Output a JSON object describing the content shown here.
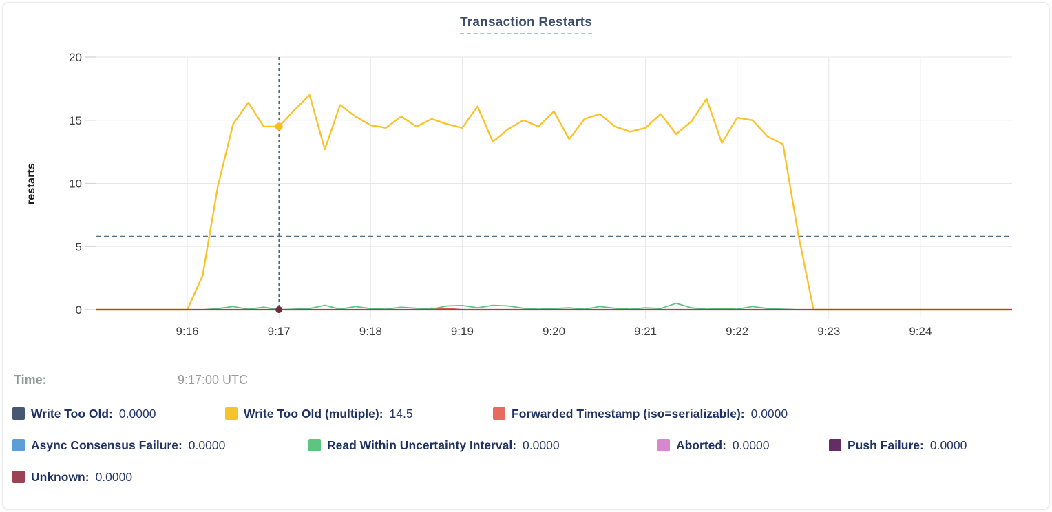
{
  "title": "Transaction Restarts",
  "tooltip": {
    "label": "Time:",
    "value": "9:17:00 UTC"
  },
  "legend": {
    "items": [
      {
        "label": "Write Too Old:",
        "value": "0.0000",
        "color": "#475872"
      },
      {
        "label": "Write Too Old (multiple):",
        "value": "14.5",
        "color": "#F6C32B"
      },
      {
        "label": "Forwarded Timestamp (iso=serializable):",
        "value": "0.0000",
        "color": "#E8695D"
      },
      {
        "label": "Async Consensus Failure:",
        "value": "0.0000",
        "color": "#5C9FD8"
      },
      {
        "label": "Read Within Uncertainty Interval:",
        "value": "0.0000",
        "color": "#5DC57F"
      },
      {
        "label": "Aborted:",
        "value": "0.0000",
        "color": "#D687CE"
      },
      {
        "label": "Push Failure:",
        "value": "0.0000",
        "color": "#642D64"
      },
      {
        "label": "Unknown:",
        "value": "0.0000",
        "color": "#9C4257"
      }
    ]
  },
  "chart_data": {
    "type": "line",
    "title": "Transaction Restarts",
    "xlabel": "",
    "ylabel": "restarts",
    "ylim": [
      0,
      20
    ],
    "yticks": [
      0,
      5,
      10,
      15,
      20
    ],
    "xticks": [
      "9:16",
      "9:17",
      "9:18",
      "9:19",
      "9:20",
      "9:21",
      "9:22",
      "9:23",
      "9:24"
    ],
    "x_domain": [
      "9:15:00",
      "9:25:00"
    ],
    "sample_interval_seconds": 10,
    "grid": true,
    "legend_position": "bottom",
    "guide_line": {
      "y": 5.8,
      "style": "dashed",
      "color": "#4F7089"
    },
    "crosshair": {
      "time": "9:17:00",
      "style": "dashed",
      "color": "#41607A",
      "hover_points": [
        {
          "series": "Write Too Old (multiple)",
          "value": 14.5,
          "color": "#F5BD1F",
          "r": 5.5
        },
        {
          "series": "Unknown",
          "value": 0,
          "color": "#6F2B40",
          "r": 5
        }
      ]
    },
    "series": [
      {
        "name": "Write Too Old",
        "color": "#475872",
        "flat_value": 0
      },
      {
        "name": "Write Too Old (multiple)",
        "color": "#FBC32A",
        "line_width": 2.4,
        "values": [
          0,
          0,
          0,
          0,
          0,
          0,
          0,
          2.7,
          9.8,
          14.7,
          16.4,
          14.5,
          14.5,
          15.8,
          17.0,
          12.7,
          16.2,
          15.3,
          14.6,
          14.4,
          15.3,
          14.5,
          15.1,
          14.7,
          14.4,
          16.1,
          13.3,
          14.3,
          15.0,
          14.5,
          15.7,
          13.5,
          15.1,
          15.5,
          14.5,
          14.1,
          14.4,
          15.5,
          13.9,
          14.9,
          16.7,
          13.2,
          15.2,
          15.0,
          13.7,
          13.1,
          6.0,
          0,
          0,
          0,
          0,
          0,
          0,
          0,
          0,
          0,
          0,
          0,
          0,
          0,
          0
        ]
      },
      {
        "name": "Forwarded Timestamp (iso=serializable)",
        "color": "#E05C52",
        "line_width": 2,
        "values": [
          0,
          0,
          0,
          0,
          0,
          0,
          0,
          0,
          0,
          0,
          0,
          0,
          0,
          0,
          0,
          0,
          0,
          0,
          0,
          0,
          0,
          0,
          0.12,
          0.1,
          0,
          0,
          0,
          0,
          0,
          0,
          0,
          0,
          0,
          0,
          0,
          0,
          0,
          0,
          0,
          0,
          0,
          0,
          0,
          0,
          0,
          0,
          0,
          0,
          0,
          0,
          0,
          0,
          0,
          0,
          0,
          0,
          0,
          0,
          0,
          0,
          0
        ]
      },
      {
        "name": "Async Consensus Failure",
        "color": "#5C9FD8",
        "flat_value": 0
      },
      {
        "name": "Read Within Uncertainty Interval",
        "color": "#5DC57F",
        "line_width": 1.8,
        "values": [
          0,
          0,
          0,
          0,
          0,
          0,
          0,
          0,
          0.1,
          0.25,
          0.05,
          0.2,
          0,
          0.05,
          0.1,
          0.35,
          0.05,
          0.25,
          0.1,
          0.05,
          0.2,
          0.12,
          0.05,
          0.3,
          0.33,
          0.15,
          0.35,
          0.3,
          0.12,
          0.05,
          0.1,
          0.15,
          0.05,
          0.25,
          0.12,
          0.05,
          0.15,
          0.1,
          0.5,
          0.15,
          0.05,
          0.1,
          0.05,
          0.25,
          0.1,
          0.05,
          0,
          0,
          0,
          0,
          0,
          0,
          0,
          0,
          0,
          0,
          0,
          0,
          0,
          0,
          0
        ]
      },
      {
        "name": "Aborted",
        "color": "#D687CE",
        "flat_value": 0
      },
      {
        "name": "Push Failure",
        "color": "#642D64",
        "flat_value": 0
      },
      {
        "name": "Unknown",
        "color": "#9C4257",
        "flat_value": 0,
        "line_width": 2.2
      }
    ]
  }
}
